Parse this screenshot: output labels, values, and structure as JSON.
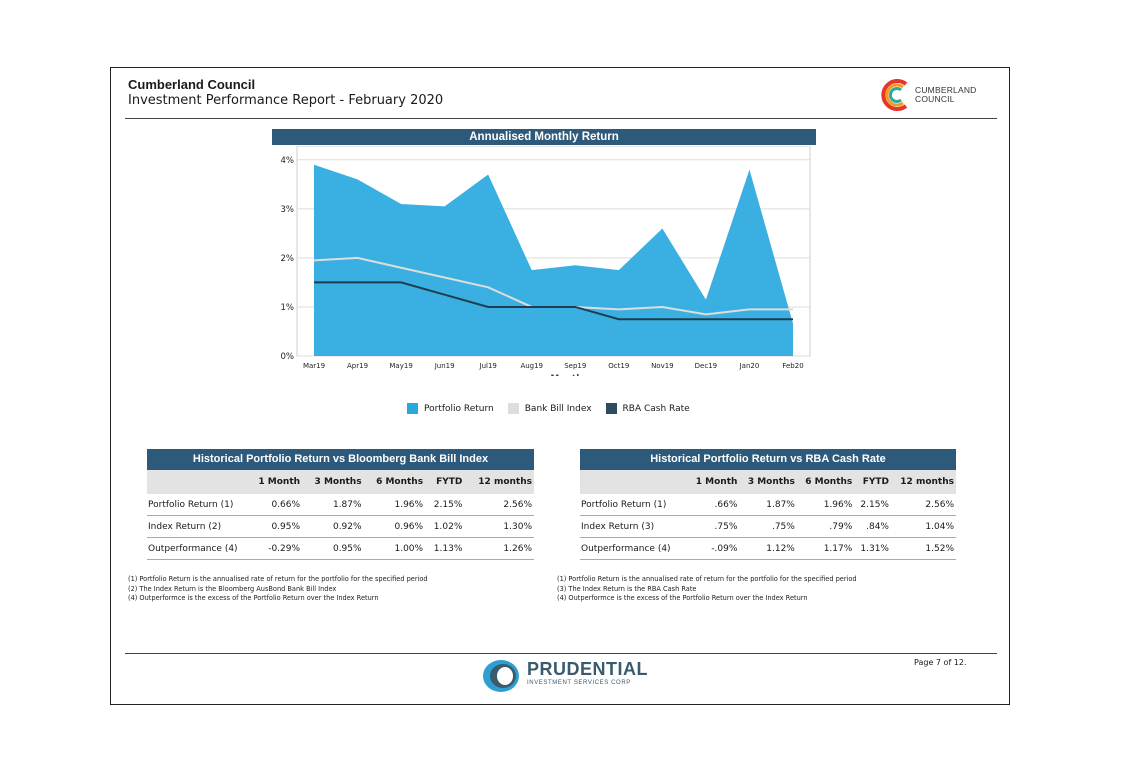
{
  "header": {
    "title": "Cumberland Council",
    "subtitle": "Investment Performance Report - February 2020",
    "logo_text_line1": "CUMBERLAND",
    "logo_text_line2": "COUNCIL"
  },
  "chart": {
    "title": "Annualised Monthly Return"
  },
  "chart_data": {
    "type": "area",
    "title": "Annualised Monthly Return",
    "xlabel": "Month",
    "ylabel": "",
    "categories": [
      "Mar19",
      "Apr19",
      "May19",
      "Jun19",
      "Jul19",
      "Aug19",
      "Sep19",
      "Oct19",
      "Nov19",
      "Dec19",
      "Jan20",
      "Feb20"
    ],
    "ylim": [
      0,
      4.2
    ],
    "yticks": [
      "0%",
      "1%",
      "2%",
      "3%",
      "4%"
    ],
    "grid": true,
    "legend_position": "bottom",
    "series": [
      {
        "name": "Portfolio Return",
        "kind": "area",
        "color": "#29a8e0",
        "values": [
          3.9,
          3.6,
          3.1,
          3.05,
          3.7,
          1.75,
          1.85,
          1.75,
          2.6,
          1.15,
          3.8,
          0.66
        ]
      },
      {
        "name": "Bank Bill Index",
        "kind": "line",
        "color": "#dddddd",
        "values": [
          1.95,
          2.0,
          1.8,
          1.6,
          1.4,
          1.0,
          1.0,
          0.95,
          1.0,
          0.85,
          0.95,
          0.95
        ]
      },
      {
        "name": "RBA Cash Rate",
        "kind": "line",
        "color": "#1f3d4f",
        "values": [
          1.5,
          1.5,
          1.5,
          1.25,
          1.0,
          1.0,
          1.0,
          0.75,
          0.75,
          0.75,
          0.75,
          0.75
        ]
      }
    ]
  },
  "legend": [
    {
      "label": "Portfolio Return",
      "color": "#29a8e0"
    },
    {
      "label": "Bank Bill Index",
      "color": "#dddddd"
    },
    {
      "label": "RBA Cash Rate",
      "color": "#2b4d5f"
    }
  ],
  "table1": {
    "title": "Historical Portfolio Return vs Bloomberg Bank Bill Index",
    "columns": [
      "",
      "1 Month",
      "3 Months",
      "6 Months",
      "FYTD",
      "12 months"
    ],
    "rows": [
      [
        "Portfolio Return (1)",
        "0.66%",
        "1.87%",
        "1.96%",
        "2.15%",
        "2.56%"
      ],
      [
        "Index Return (2)",
        "0.95%",
        "0.92%",
        "0.96%",
        "1.02%",
        "1.30%"
      ],
      [
        "Outperformance (4)",
        "-0.29%",
        "0.95%",
        "1.00%",
        "1.13%",
        "1.26%"
      ]
    ],
    "notes": [
      "(1) Portfolio Return is the annualised rate of return for the portfolio for the specified period",
      "(2) The Index Return is the Bloomberg AusBond Bank Bill Index",
      "(4) Outperformce is the excess of the Portfolio Return over the Index Return"
    ]
  },
  "table2": {
    "title": "Historical Portfolio Return vs RBA Cash Rate",
    "columns": [
      "",
      "1 Month",
      "3 Months",
      "6 Months",
      "FYTD",
      "12 months"
    ],
    "rows": [
      [
        "Portfolio Return (1)",
        ".66%",
        "1.87%",
        "1.96%",
        "2.15%",
        "2.56%"
      ],
      [
        "Index Return (3)",
        ".75%",
        ".75%",
        ".79%",
        ".84%",
        "1.04%"
      ],
      [
        "Outperformance (4)",
        "-.09%",
        "1.12%",
        "1.17%",
        "1.31%",
        "1.52%"
      ]
    ],
    "notes": [
      "(1) Portfolio Return is the annualised rate of return for the portfolio for the specified period",
      "(3) The Index Return is the RBA Cash Rate",
      "(4) Outperformce is the excess of the Portfolio Return over the Index Return"
    ]
  },
  "footer": {
    "page": "Page 7 of 12.",
    "brand_name": "PRUDENTIAL",
    "brand_sub": "INVESTMENT SERVICES CORP"
  }
}
